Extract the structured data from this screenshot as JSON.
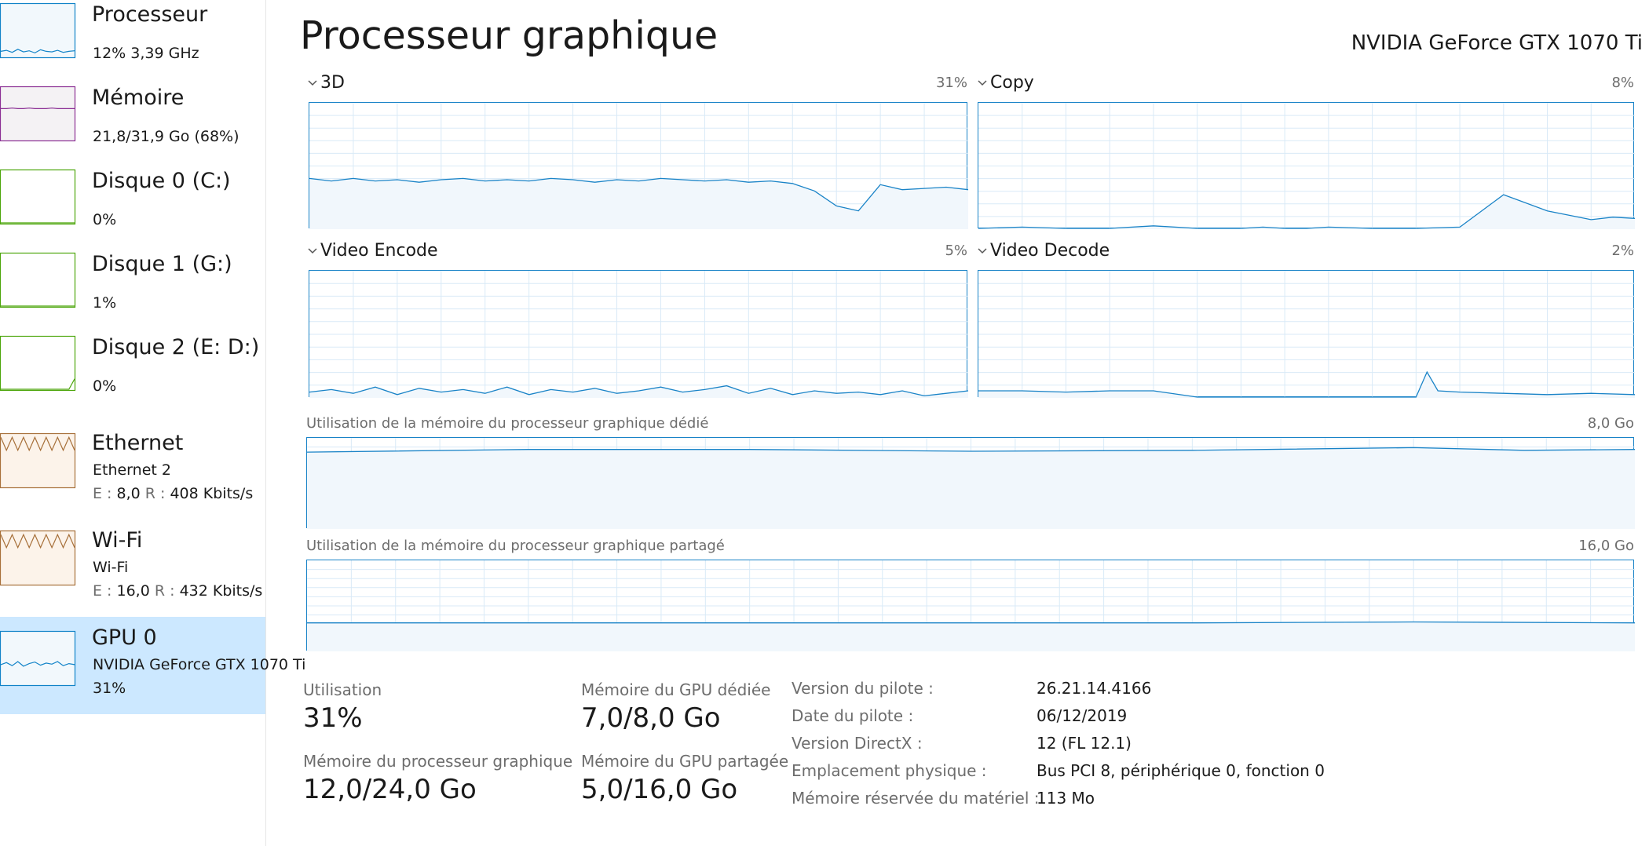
{
  "sidebar": {
    "items": [
      {
        "title": "Processeur",
        "sub1": "12%  3,39 GHz",
        "color": "#1183c8",
        "fill": "#f2f8fc"
      },
      {
        "title": "Mémoire",
        "sub1": "21,8/31,9 Go (68%)",
        "color": "#8b2f94",
        "fill": "#f4f2f4"
      },
      {
        "title": "Disque 0 (C:)",
        "sub1": "0%",
        "color": "#4da60c",
        "fill": "#ffffff"
      },
      {
        "title": "Disque 1 (G:)",
        "sub1": "1%",
        "color": "#4da60c",
        "fill": "#ffffff"
      },
      {
        "title": "Disque 2 (E: D:)",
        "sub1": "0%",
        "color": "#4da60c",
        "fill": "#ffffff"
      },
      {
        "title": "Ethernet",
        "sub1": "Ethernet 2",
        "send_label": "E :",
        "send_value": "8,0",
        "recv_label": "R :",
        "recv_value": "408 Kbits/s",
        "color": "#a7703a",
        "fill": "#fcf3ea"
      },
      {
        "title": "Wi-Fi",
        "sub1": "Wi-Fi",
        "send_label": "E :",
        "send_value": "16,0",
        "recv_label": "R :",
        "recv_value": "432 Kbits/s",
        "color": "#a7703a",
        "fill": "#fcf3ea"
      },
      {
        "title": "GPU 0",
        "sub1": "NVIDIA GeForce GTX 1070 Ti",
        "sub2": "31%",
        "color": "#1183c8",
        "fill": "#f2f8fc"
      }
    ],
    "selected_index": 7
  },
  "main": {
    "title": "Processeur graphique",
    "device": "NVIDIA GeForce GTX 1070 Ti",
    "accent": "#1983c7",
    "engines": [
      {
        "name": "3D",
        "percent": "31%"
      },
      {
        "name": "Copy",
        "percent": "8%"
      },
      {
        "name": "Video Encode",
        "percent": "5%"
      },
      {
        "name": "Video Decode",
        "percent": "2%"
      }
    ],
    "memory_charts": [
      {
        "label": "Utilisation de la mémoire du processeur graphique dédié",
        "max": "8,0 Go"
      },
      {
        "label": "Utilisation de la mémoire du processeur graphique partagé",
        "max": "16,0 Go"
      }
    ]
  },
  "stats": {
    "utilisation_label": "Utilisation",
    "utilisation_value": "31%",
    "dedicated_label": "Mémoire du GPU dédiée",
    "dedicated_value": "7,0/8,0 Go",
    "gpu_mem_label": "Mémoire du processeur graphique",
    "gpu_mem_value": "12,0/24,0 Go",
    "shared_label": "Mémoire du GPU partagée",
    "shared_value": "5,0/16,0 Go"
  },
  "info": [
    {
      "key": "Version du pilote :",
      "value": "26.21.14.4166"
    },
    {
      "key": "Date du pilote :",
      "value": "06/12/2019"
    },
    {
      "key": "Version DirectX :",
      "value": "12 (FL 12.1)"
    },
    {
      "key": "Emplacement physique :",
      "value": "Bus PCI 8, périphérique 0, fonction 0"
    },
    {
      "key": "Mémoire réservée du matériel :",
      "value": "113 Mo"
    }
  ],
  "chart_data": [
    {
      "type": "area",
      "name": "3D",
      "x": [
        0,
        2,
        4,
        6,
        8,
        10,
        12,
        14,
        16,
        18,
        20,
        22,
        24,
        26,
        28,
        30,
        32,
        34,
        36,
        38,
        40,
        42,
        44,
        46,
        48,
        50,
        52,
        54,
        56,
        58,
        60
      ],
      "values": [
        40,
        38,
        40,
        38,
        39,
        37,
        39,
        40,
        38,
        39,
        38,
        40,
        39,
        37,
        39,
        38,
        40,
        39,
        38,
        39,
        37,
        38,
        36,
        30,
        18,
        14,
        35,
        31,
        32,
        33,
        31
      ],
      "ylim": [
        0,
        100
      ]
    },
    {
      "type": "area",
      "name": "Copy",
      "x": [
        0,
        4,
        8,
        12,
        16,
        20,
        24,
        26,
        28,
        30,
        32,
        36,
        40,
        44,
        48,
        52,
        56,
        58,
        60
      ],
      "values": [
        0,
        1,
        0,
        0,
        2,
        0,
        0,
        1,
        0,
        0,
        1,
        0,
        0,
        1,
        27,
        14,
        7,
        9,
        8
      ],
      "ylim": [
        0,
        100
      ]
    },
    {
      "type": "area",
      "name": "Video Encode",
      "x": [
        0,
        2,
        4,
        6,
        8,
        10,
        12,
        14,
        16,
        18,
        20,
        22,
        24,
        26,
        28,
        30,
        32,
        34,
        36,
        38,
        40,
        42,
        44,
        46,
        48,
        50,
        52,
        54,
        56,
        58,
        60
      ],
      "values": [
        4,
        6,
        3,
        8,
        2,
        7,
        4,
        6,
        3,
        8,
        2,
        6,
        4,
        7,
        3,
        5,
        8,
        4,
        6,
        9,
        3,
        7,
        2,
        5,
        3,
        4,
        2,
        5,
        1,
        3,
        5
      ],
      "ylim": [
        0,
        100
      ]
    },
    {
      "type": "area",
      "name": "Video Decode",
      "x": [
        0,
        4,
        8,
        12,
        16,
        20,
        24,
        28,
        32,
        36,
        40,
        41,
        42,
        44,
        48,
        52,
        56,
        60
      ],
      "values": [
        5,
        5,
        4,
        5,
        5,
        0,
        0,
        0,
        0,
        0,
        0,
        20,
        5,
        4,
        3,
        2,
        3,
        2
      ],
      "ylim": [
        0,
        100
      ]
    },
    {
      "type": "area",
      "name": "Utilisation de la mémoire du processeur graphique dédié",
      "x": [
        0,
        10,
        20,
        30,
        40,
        50,
        55,
        60
      ],
      "values": [
        85,
        88,
        88,
        86,
        87,
        90,
        87,
        88
      ],
      "ylim": [
        0,
        100
      ]
    },
    {
      "type": "area",
      "name": "Utilisation de la mémoire du processeur graphique partagé",
      "x": [
        0,
        10,
        20,
        30,
        40,
        50,
        60
      ],
      "values": [
        31,
        31,
        31,
        31,
        31,
        32,
        31
      ],
      "ylim": [
        0,
        100
      ]
    }
  ]
}
